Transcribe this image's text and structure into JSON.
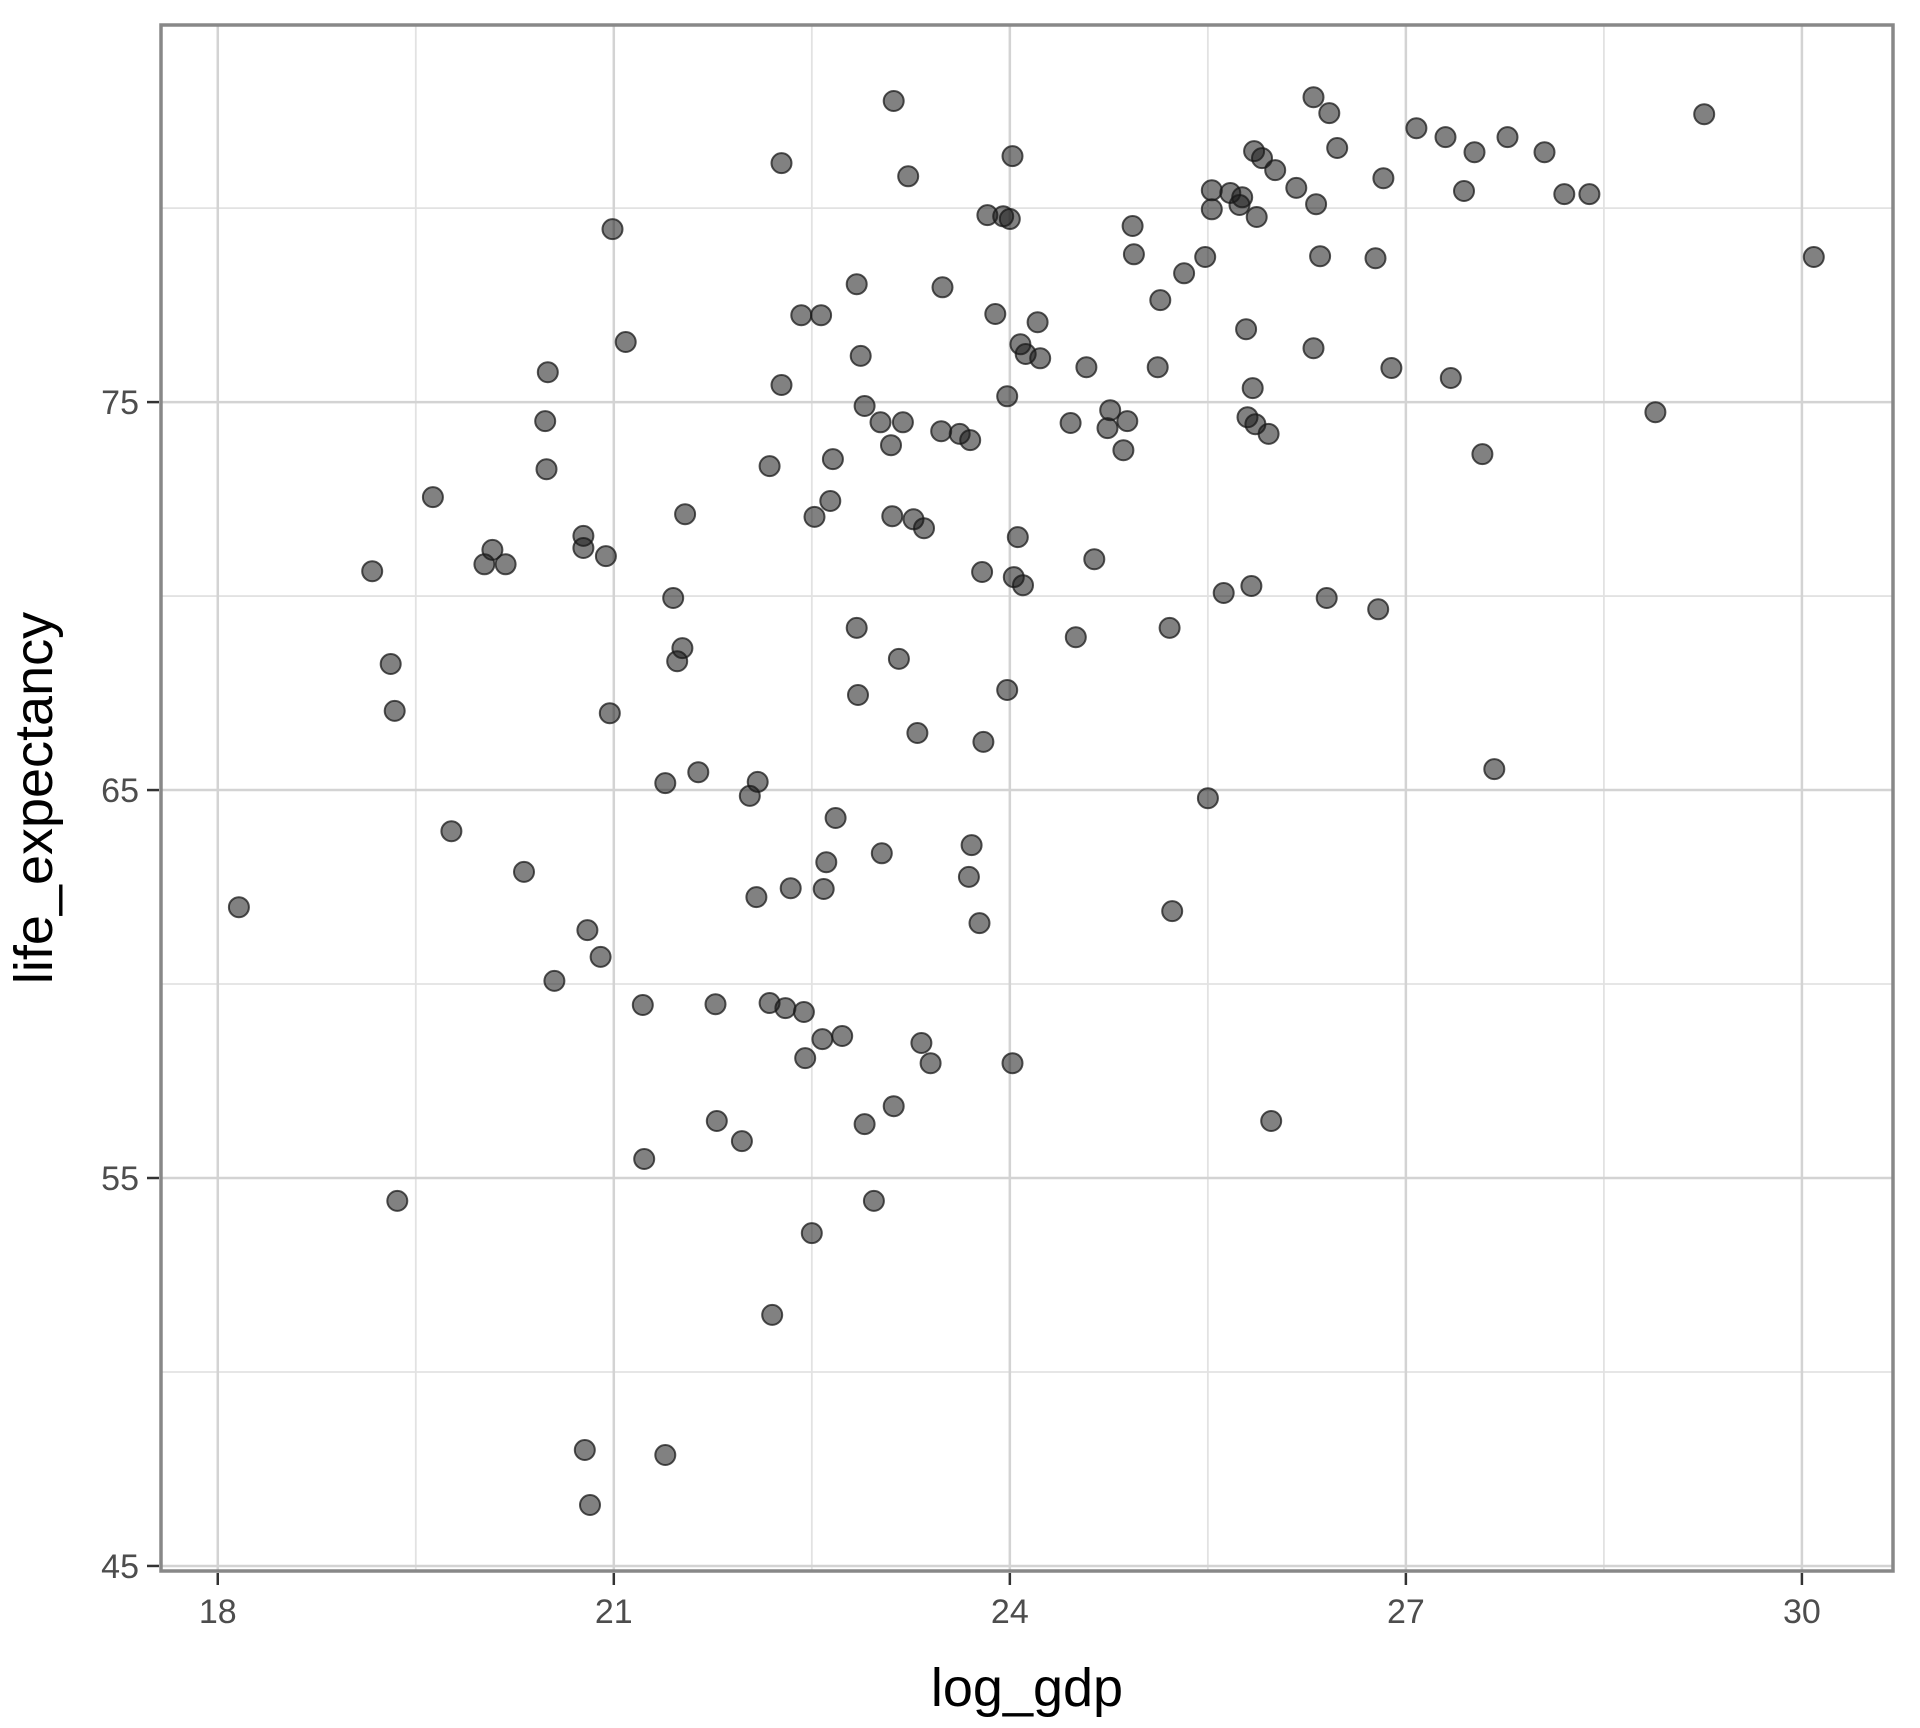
{
  "chart_data": {
    "type": "scatter",
    "title": "",
    "xlabel": "log_gdp",
    "ylabel": "life_expectancy",
    "x_ticks": [
      18,
      21,
      24,
      27,
      30
    ],
    "y_ticks": [
      45,
      55,
      65,
      75
    ],
    "x_minor_ticks": [
      19.5,
      22.5,
      25.5,
      28.5
    ],
    "y_minor_ticks": [
      50,
      60,
      70,
      80
    ],
    "xlim": [
      17.57,
      30.69
    ],
    "ylim": [
      44.87,
      84.72
    ],
    "grid": "major+minor",
    "legend_position": "none",
    "points": [
      [
        20.5,
        75.77
      ],
      [
        20.48,
        74.51
      ],
      [
        23.12,
        82.76
      ],
      [
        22.27,
        81.16
      ],
      [
        23.23,
        80.82
      ],
      [
        24.02,
        81.34
      ],
      [
        23.83,
        79.82
      ],
      [
        23.95,
        79.79
      ],
      [
        24.0,
        79.72
      ],
      [
        20.99,
        79.46
      ],
      [
        22.84,
        78.04
      ],
      [
        23.49,
        77.96
      ],
      [
        22.42,
        77.24
      ],
      [
        22.57,
        77.24
      ],
      [
        23.89,
        77.27
      ],
      [
        21.09,
        76.55
      ],
      [
        22.87,
        76.19
      ],
      [
        22.27,
        75.44
      ],
      [
        22.9,
        74.9
      ],
      [
        23.02,
        74.48
      ],
      [
        23.19,
        74.48
      ],
      [
        23.1,
        73.89
      ],
      [
        23.98,
        75.15
      ],
      [
        26.3,
        82.86
      ],
      [
        26.42,
        82.45
      ],
      [
        27.08,
        82.06
      ],
      [
        27.3,
        81.83
      ],
      [
        26.48,
        81.55
      ],
      [
        25.85,
        81.47
      ],
      [
        25.91,
        81.29
      ],
      [
        26.01,
        80.98
      ],
      [
        26.83,
        80.77
      ],
      [
        26.17,
        80.52
      ],
      [
        27.44,
        80.44
      ],
      [
        25.53,
        80.46
      ],
      [
        25.67,
        80.39
      ],
      [
        25.76,
        80.28
      ],
      [
        26.32,
        80.1
      ],
      [
        25.53,
        79.97
      ],
      [
        25.74,
        80.08
      ],
      [
        25.87,
        79.77
      ],
      [
        24.93,
        79.54
      ],
      [
        24.94,
        78.81
      ],
      [
        25.48,
        78.74
      ],
      [
        26.35,
        78.76
      ],
      [
        26.77,
        78.71
      ],
      [
        25.32,
        78.32
      ],
      [
        25.14,
        77.63
      ],
      [
        24.21,
        77.06
      ],
      [
        24.08,
        76.49
      ],
      [
        24.12,
        76.24
      ],
      [
        24.23,
        76.13
      ],
      [
        24.58,
        75.9
      ],
      [
        25.12,
        75.9
      ],
      [
        25.79,
        76.88
      ],
      [
        26.3,
        76.39
      ],
      [
        26.89,
        75.88
      ],
      [
        27.34,
        75.62
      ],
      [
        25.84,
        75.36
      ],
      [
        24.76,
        74.79
      ],
      [
        24.46,
        74.46
      ],
      [
        24.74,
        74.33
      ],
      [
        24.89,
        74.51
      ],
      [
        24.86,
        73.76
      ],
      [
        25.8,
        74.61
      ],
      [
        25.86,
        74.43
      ],
      [
        25.96,
        74.18
      ],
      [
        29.26,
        82.42
      ],
      [
        27.77,
        81.83
      ],
      [
        27.52,
        81.44
      ],
      [
        28.05,
        81.44
      ],
      [
        28.2,
        80.36
      ],
      [
        28.39,
        80.36
      ],
      [
        30.09,
        78.74
      ],
      [
        28.89,
        74.74
      ],
      [
        20.49,
        73.27
      ],
      [
        19.63,
        72.55
      ],
      [
        19.17,
        70.64
      ],
      [
        20.08,
        71.19
      ],
      [
        20.02,
        70.82
      ],
      [
        20.18,
        70.82
      ],
      [
        20.77,
        71.55
      ],
      [
        20.77,
        71.24
      ],
      [
        19.31,
        68.25
      ],
      [
        19.34,
        67.04
      ],
      [
        23.48,
        74.25
      ],
      [
        23.62,
        74.18
      ],
      [
        23.7,
        74.02
      ],
      [
        22.18,
        73.35
      ],
      [
        22.66,
        73.53
      ],
      [
        21.54,
        72.11
      ],
      [
        22.64,
        72.45
      ],
      [
        22.52,
        72.04
      ],
      [
        23.11,
        72.06
      ],
      [
        23.27,
        71.98
      ],
      [
        23.35,
        71.75
      ],
      [
        20.94,
        71.03
      ],
      [
        23.79,
        70.62
      ],
      [
        21.45,
        69.95
      ],
      [
        21.52,
        68.66
      ],
      [
        21.48,
        68.32
      ],
      [
        22.84,
        69.18
      ],
      [
        23.16,
        68.38
      ],
      [
        22.85,
        67.45
      ],
      [
        23.98,
        67.58
      ],
      [
        20.97,
        66.98
      ],
      [
        23.3,
        66.47
      ],
      [
        23.8,
        66.24
      ],
      [
        21.64,
        65.46
      ],
      [
        21.39,
        65.18
      ],
      [
        22.09,
        65.21
      ],
      [
        22.03,
        64.85
      ],
      [
        22.68,
        64.28
      ],
      [
        24.64,
        70.95
      ],
      [
        24.06,
        71.52
      ],
      [
        24.03,
        70.49
      ],
      [
        24.1,
        70.28
      ],
      [
        25.62,
        70.08
      ],
      [
        25.83,
        70.26
      ],
      [
        26.4,
        69.95
      ],
      [
        26.79,
        69.66
      ],
      [
        25.21,
        69.18
      ],
      [
        24.5,
        68.94
      ],
      [
        25.5,
        64.79
      ],
      [
        27.58,
        73.66
      ],
      [
        27.67,
        65.54
      ],
      [
        19.77,
        63.94
      ],
      [
        20.32,
        62.89
      ],
      [
        18.16,
        61.98
      ],
      [
        20.8,
        61.39
      ],
      [
        20.55,
        60.08
      ],
      [
        19.36,
        54.41
      ],
      [
        22.61,
        63.14
      ],
      [
        23.03,
        63.37
      ],
      [
        23.71,
        63.58
      ],
      [
        23.69,
        62.76
      ],
      [
        22.08,
        62.24
      ],
      [
        22.34,
        62.47
      ],
      [
        22.59,
        62.45
      ],
      [
        23.77,
        61.57
      ],
      [
        20.9,
        60.7
      ],
      [
        21.22,
        59.46
      ],
      [
        21.77,
        59.48
      ],
      [
        22.18,
        59.51
      ],
      [
        22.3,
        59.38
      ],
      [
        22.44,
        59.28
      ],
      [
        22.58,
        58.58
      ],
      [
        22.73,
        58.66
      ],
      [
        22.45,
        58.09
      ],
      [
        23.33,
        58.48
      ],
      [
        23.4,
        57.96
      ],
      [
        24.02,
        57.96
      ],
      [
        23.12,
        56.85
      ],
      [
        22.9,
        56.39
      ],
      [
        21.78,
        56.47
      ],
      [
        21.97,
        55.95
      ],
      [
        21.23,
        55.49
      ],
      [
        22.97,
        54.41
      ],
      [
        25.23,
        61.88
      ],
      [
        25.98,
        56.47
      ],
      [
        22.5,
        53.58
      ],
      [
        22.2,
        51.47
      ],
      [
        20.78,
        47.99
      ],
      [
        21.39,
        47.86
      ],
      [
        20.82,
        46.57
      ]
    ]
  },
  "style": {
    "background": "#ffffff",
    "panel_background": "#ffffff",
    "panel_border_color": "#888888",
    "major_grid_color": "#d3d3d3",
    "minor_grid_color": "#e2e2e2",
    "tick_mark_color": "#333333",
    "tick_label_color": "#4d4d4d",
    "axis_title_color": "#000000",
    "point_color": "#1a1a1a",
    "point_fill_opacity": 0.55,
    "point_stroke_opacity": 0.75
  }
}
